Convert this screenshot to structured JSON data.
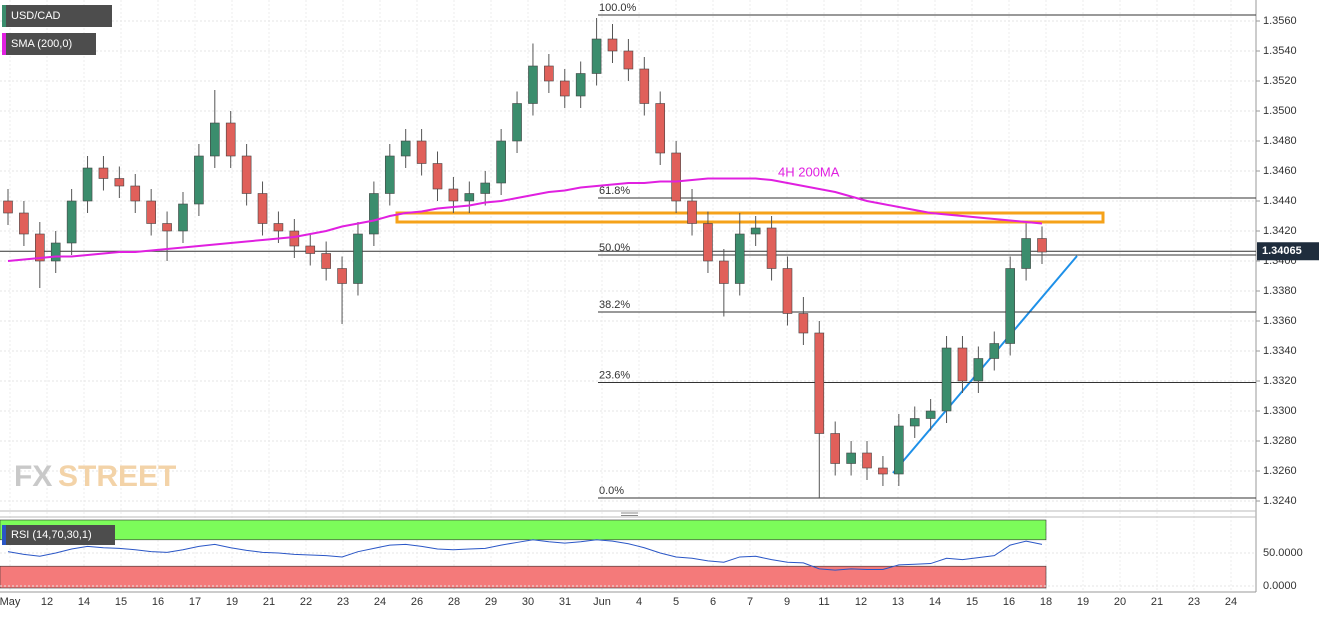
{
  "chart_data": [
    {
      "type": "candlestick",
      "title": "USD/CAD",
      "up_color": "#3b8d6d",
      "down_color": "#e0605a",
      "date_labels": [
        "May",
        "12",
        "14",
        "15",
        "16",
        "17",
        "19",
        "21",
        "22",
        "23",
        "24",
        "26",
        "28",
        "29",
        "30",
        "31",
        "Jun",
        "4",
        "5",
        "6",
        "7",
        "9",
        "11",
        "12",
        "13",
        "14",
        "15",
        "16",
        "18",
        "19",
        "20",
        "21",
        "23",
        "24"
      ],
      "open": [
        1.344,
        1.3432,
        1.3418,
        1.34,
        1.3412,
        1.344,
        1.3462,
        1.3455,
        1.345,
        1.344,
        1.3425,
        1.342,
        1.3438,
        1.347,
        1.3492,
        1.347,
        1.3445,
        1.3425,
        1.342,
        1.341,
        1.3405,
        1.3395,
        1.3385,
        1.3418,
        1.3445,
        1.347,
        1.348,
        1.3465,
        1.3448,
        1.344,
        1.3445,
        1.3452,
        1.348,
        1.3505,
        1.353,
        1.352,
        1.351,
        1.3525,
        1.3548,
        1.354,
        1.3528,
        1.3505,
        1.3472,
        1.344,
        1.3425,
        1.34,
        1.3385,
        1.3418,
        1.3422,
        1.3395,
        1.3365,
        1.3352,
        1.3285,
        1.3265,
        1.3272,
        1.3262,
        1.3258,
        1.329,
        1.3295,
        1.33,
        1.3342,
        1.332,
        1.3335,
        1.3345,
        1.3395,
        1.3415
      ],
      "high": [
        1.3448,
        1.344,
        1.3426,
        1.342,
        1.3448,
        1.347,
        1.347,
        1.3463,
        1.3458,
        1.3448,
        1.3433,
        1.3446,
        1.3478,
        1.3514,
        1.35,
        1.3478,
        1.3453,
        1.3433,
        1.3428,
        1.3418,
        1.3413,
        1.3403,
        1.3426,
        1.3453,
        1.3478,
        1.3488,
        1.3488,
        1.3473,
        1.3456,
        1.3453,
        1.346,
        1.3488,
        1.3513,
        1.3545,
        1.3538,
        1.3528,
        1.3533,
        1.3562,
        1.3558,
        1.3548,
        1.3536,
        1.3513,
        1.348,
        1.3448,
        1.3433,
        1.3408,
        1.3432,
        1.343,
        1.343,
        1.3403,
        1.3376,
        1.336,
        1.3293,
        1.328,
        1.328,
        1.327,
        1.3298,
        1.3303,
        1.3308,
        1.335,
        1.335,
        1.3343,
        1.3353,
        1.3403,
        1.3425,
        1.3423
      ],
      "low": [
        1.3424,
        1.341,
        1.3382,
        1.3392,
        1.3404,
        1.3432,
        1.3447,
        1.3442,
        1.3432,
        1.3417,
        1.34,
        1.3412,
        1.343,
        1.3462,
        1.3462,
        1.3437,
        1.3417,
        1.3412,
        1.3402,
        1.3397,
        1.3387,
        1.3358,
        1.3377,
        1.341,
        1.3437,
        1.3462,
        1.3457,
        1.344,
        1.3432,
        1.3432,
        1.3437,
        1.3444,
        1.3472,
        1.3497,
        1.3512,
        1.3502,
        1.3502,
        1.3517,
        1.3532,
        1.352,
        1.3497,
        1.3464,
        1.3432,
        1.3417,
        1.3392,
        1.3363,
        1.3377,
        1.341,
        1.3387,
        1.3357,
        1.3344,
        1.3242,
        1.3257,
        1.3257,
        1.3254,
        1.325,
        1.325,
        1.3282,
        1.3287,
        1.3292,
        1.3312,
        1.3312,
        1.3327,
        1.3337,
        1.3387,
        1.3398
      ],
      "close": [
        1.3432,
        1.3418,
        1.34,
        1.3412,
        1.344,
        1.3462,
        1.3455,
        1.345,
        1.344,
        1.3425,
        1.342,
        1.3438,
        1.347,
        1.3492,
        1.347,
        1.3445,
        1.3425,
        1.342,
        1.341,
        1.3405,
        1.3395,
        1.3385,
        1.3418,
        1.3445,
        1.347,
        1.348,
        1.3465,
        1.3448,
        1.344,
        1.3445,
        1.3452,
        1.348,
        1.3505,
        1.353,
        1.352,
        1.351,
        1.3525,
        1.3548,
        1.354,
        1.3528,
        1.3505,
        1.3472,
        1.344,
        1.3425,
        1.34,
        1.3385,
        1.3418,
        1.3422,
        1.3395,
        1.3365,
        1.3352,
        1.3285,
        1.3265,
        1.3272,
        1.3262,
        1.3258,
        1.329,
        1.3295,
        1.33,
        1.3342,
        1.332,
        1.3335,
        1.3345,
        1.3395,
        1.3415,
        1.3406
      ],
      "sma": {
        "name": "SMA (200,0)",
        "color": "#e020e0",
        "values": [
          1.34,
          1.3401,
          1.3402,
          1.3403,
          1.3403,
          1.3404,
          1.3405,
          1.3406,
          1.3406,
          1.3407,
          1.3408,
          1.3409,
          1.341,
          1.3411,
          1.3412,
          1.3413,
          1.3414,
          1.3415,
          1.3416,
          1.3418,
          1.342,
          1.3423,
          1.3425,
          1.3427,
          1.343,
          1.3432,
          1.3433,
          1.3435,
          1.3436,
          1.3437,
          1.3439,
          1.344,
          1.3442,
          1.3444,
          1.3446,
          1.3447,
          1.3449,
          1.345,
          1.3451,
          1.3452,
          1.3452,
          1.3453,
          1.3453,
          1.3454,
          1.3455,
          1.3455,
          1.3455,
          1.3455,
          1.3454,
          1.3452,
          1.345,
          1.3448,
          1.3446,
          1.3443,
          1.344,
          1.3438,
          1.3436,
          1.3434,
          1.3432,
          1.3431,
          1.343,
          1.3429,
          1.3428,
          1.3427,
          1.3426,
          1.3425
        ]
      },
      "sma_annotation": "4H 200MA",
      "resistance_zone": [
        1.3426,
        1.3432
      ],
      "fib_levels": [
        {
          "value": 1.3564,
          "label": "100.0%"
        },
        {
          "value": 1.3442,
          "label": "61.8%"
        },
        {
          "value": 1.3404,
          "label": "50.0%"
        },
        {
          "value": 1.3366,
          "label": "38.2%"
        },
        {
          "value": 1.3319,
          "label": "23.6%"
        },
        {
          "value": 1.3242,
          "label": "0.0%"
        }
      ],
      "last_price": {
        "value": 1.34065,
        "label": "1.34065"
      },
      "ylim": [
        1.3234,
        1.3574
      ],
      "yticks": [
        {
          "value": 1.324,
          "label": "1.3240"
        },
        {
          "value": 1.326,
          "label": "1.3260"
        },
        {
          "value": 1.328,
          "label": "1.3280"
        },
        {
          "value": 1.33,
          "label": "1.3300"
        },
        {
          "value": 1.332,
          "label": "1.3320"
        },
        {
          "value": 1.334,
          "label": "1.3340"
        },
        {
          "value": 1.336,
          "label": "1.3360"
        },
        {
          "value": 1.338,
          "label": "1.3380"
        },
        {
          "value": 1.34,
          "label": "1.3400"
        },
        {
          "value": 1.342,
          "label": "1.3420"
        },
        {
          "value": 1.344,
          "label": "1.3440"
        },
        {
          "value": 1.346,
          "label": "1.3460"
        },
        {
          "value": 1.348,
          "label": "1.3480"
        },
        {
          "value": 1.35,
          "label": "1.3500"
        },
        {
          "value": 1.352,
          "label": "1.3520"
        },
        {
          "value": 1.354,
          "label": "1.3540"
        },
        {
          "value": 1.356,
          "label": "1.3560"
        }
      ],
      "grid": true,
      "watermark": [
        "FX",
        "STREET"
      ]
    },
    {
      "type": "line",
      "title": "RSI (14,70,30,1)",
      "color": "#2a56c6",
      "values": [
        52,
        48,
        45,
        50,
        56,
        60,
        58,
        57,
        55,
        52,
        51,
        55,
        60,
        63,
        58,
        54,
        51,
        50,
        48,
        47,
        46,
        44,
        52,
        57,
        62,
        63,
        60,
        56,
        55,
        56,
        57,
        62,
        66,
        70,
        67,
        65,
        67,
        70,
        68,
        64,
        58,
        50,
        44,
        42,
        38,
        36,
        44,
        45,
        40,
        36,
        35,
        26,
        24,
        26,
        25,
        25,
        32,
        33,
        34,
        42,
        40,
        43,
        46,
        62,
        68,
        63
      ],
      "overbought": 70,
      "oversold": 30,
      "ylim": [
        0,
        100
      ],
      "yticks": [
        {
          "value": 50,
          "label": "50.0000"
        },
        {
          "value": 0,
          "label": "0.0000"
        }
      ]
    }
  ]
}
